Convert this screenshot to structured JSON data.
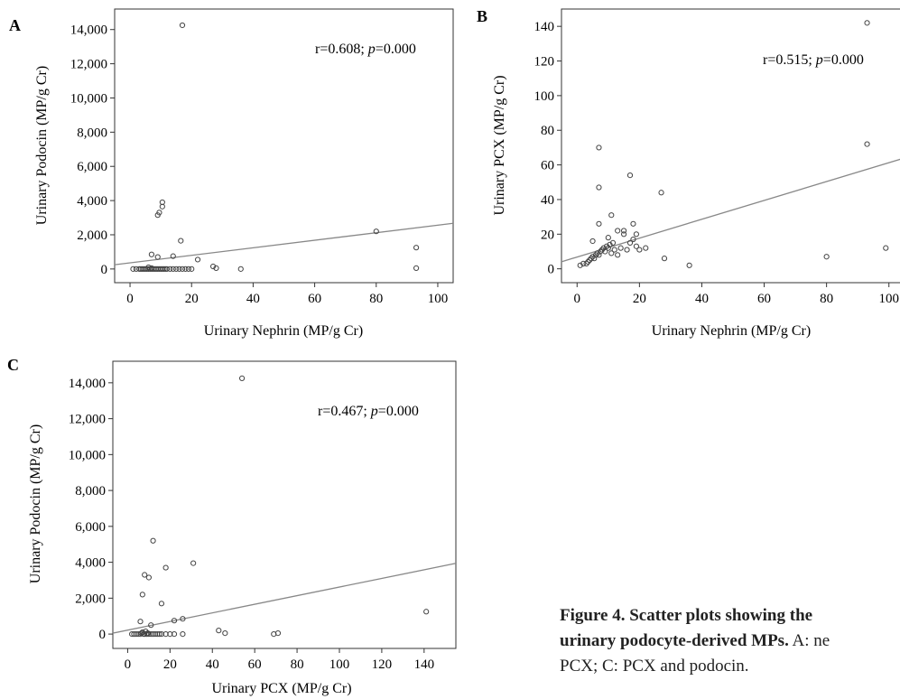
{
  "figure": {
    "caption_bold_line1": "Figure 4. Scatter plots showing the",
    "caption_bold_line2": "urinary podocyte-derived MPs.",
    "caption_rest_line2": " A: ne",
    "caption_line3": "PCX; C: PCX and podocin."
  },
  "chart_data": [
    {
      "panel": "A",
      "type": "scatter",
      "xlabel": "Urinary Nephrin (MP/g Cr)",
      "ylabel": "Urinary Podocin (MP/g Cr)",
      "annotation_r": "r=0.608; ",
      "annotation_p": "p",
      "annotation_val": "=0.000",
      "xlim": [
        -5,
        105
      ],
      "ylim": [
        -800,
        15200
      ],
      "xticks": [
        0,
        20,
        40,
        60,
        80,
        100
      ],
      "xtick_labels": [
        "0",
        "20",
        "40",
        "60",
        "80",
        "100"
      ],
      "yticks": [
        0,
        2000,
        4000,
        6000,
        8000,
        10000,
        12000,
        14000
      ],
      "ytick_labels": [
        "0",
        "2,000",
        "4,000",
        "6,000",
        "8,000",
        "10,000",
        "12,000",
        "14,000"
      ],
      "fit_line": {
        "intercept": 360,
        "slope": 22
      },
      "points": [
        [
          1,
          0
        ],
        [
          2,
          0
        ],
        [
          3,
          0
        ],
        [
          3.5,
          0
        ],
        [
          4,
          0
        ],
        [
          4.5,
          0
        ],
        [
          5,
          0
        ],
        [
          5.5,
          0
        ],
        [
          6,
          0
        ],
        [
          6,
          100
        ],
        [
          6.5,
          0
        ],
        [
          7,
          0
        ],
        [
          7,
          50
        ],
        [
          7.5,
          0
        ],
        [
          8,
          0
        ],
        [
          8.5,
          0
        ],
        [
          9,
          0
        ],
        [
          9.5,
          0
        ],
        [
          10,
          0
        ],
        [
          10.5,
          0
        ],
        [
          11,
          0
        ],
        [
          11.5,
          0
        ],
        [
          12,
          0
        ],
        [
          13,
          0
        ],
        [
          14,
          0
        ],
        [
          15,
          0
        ],
        [
          16,
          0
        ],
        [
          17,
          0
        ],
        [
          18,
          0
        ],
        [
          19,
          0
        ],
        [
          20,
          0
        ],
        [
          7,
          850
        ],
        [
          9,
          700
        ],
        [
          14,
          750
        ],
        [
          9,
          3150
        ],
        [
          9.5,
          3300
        ],
        [
          10.5,
          3650
        ],
        [
          10.5,
          3900
        ],
        [
          16.5,
          1650
        ],
        [
          22,
          550
        ],
        [
          27,
          150
        ],
        [
          28,
          50
        ],
        [
          36,
          0
        ],
        [
          17,
          14250
        ],
        [
          80,
          2200
        ],
        [
          93,
          1250
        ],
        [
          93,
          50
        ]
      ]
    },
    {
      "panel": "B",
      "type": "scatter",
      "xlabel": "Urinary Nephrin (MP/g Cr)",
      "ylabel": "Urinary PCX (MP/g Cr)",
      "annotation_r": "r=0.515; ",
      "annotation_p": "p",
      "annotation_val": "=0.000",
      "xlim": [
        -5,
        105
      ],
      "ylim": [
        -8,
        150
      ],
      "xticks": [
        0,
        20,
        40,
        60,
        80,
        100
      ],
      "xtick_labels": [
        "0",
        "20",
        "40",
        "60",
        "80",
        "100"
      ],
      "yticks": [
        0,
        20,
        40,
        60,
        80,
        100,
        120,
        140
      ],
      "ytick_labels": [
        "0",
        "20",
        "40",
        "60",
        "80",
        "100",
        "120",
        "140"
      ],
      "fit_line": {
        "intercept": 6.8,
        "slope": 0.545
      },
      "points": [
        [
          1,
          2
        ],
        [
          2,
          3
        ],
        [
          3,
          3
        ],
        [
          3.5,
          4
        ],
        [
          4,
          5
        ],
        [
          4.5,
          6
        ],
        [
          5,
          7
        ],
        [
          5.5,
          6
        ],
        [
          6,
          8
        ],
        [
          6.5,
          9
        ],
        [
          7,
          8
        ],
        [
          7.5,
          10
        ],
        [
          8,
          11
        ],
        [
          8.5,
          12
        ],
        [
          9,
          10
        ],
        [
          9.5,
          13
        ],
        [
          10,
          12
        ],
        [
          10.5,
          14
        ],
        [
          11,
          9
        ],
        [
          11.5,
          15
        ],
        [
          12,
          11
        ],
        [
          13,
          8
        ],
        [
          14,
          12
        ],
        [
          15,
          20
        ],
        [
          16,
          11
        ],
        [
          17,
          15
        ],
        [
          18,
          17
        ],
        [
          19,
          13
        ],
        [
          20,
          11
        ],
        [
          22,
          12
        ],
        [
          5,
          16
        ],
        [
          7,
          26
        ],
        [
          10,
          18
        ],
        [
          11,
          31
        ],
        [
          13,
          22
        ],
        [
          15,
          22
        ],
        [
          18,
          26
        ],
        [
          19,
          20
        ],
        [
          7,
          70
        ],
        [
          7,
          47
        ],
        [
          17,
          54
        ],
        [
          27,
          44
        ],
        [
          28,
          6
        ],
        [
          36,
          2
        ],
        [
          80,
          7
        ],
        [
          93,
          72
        ],
        [
          93,
          142
        ],
        [
          99,
          12
        ]
      ]
    },
    {
      "panel": "C",
      "type": "scatter",
      "xlabel": "Urinary PCX (MP/g Cr)",
      "ylabel": "Urinary Podocin (MP/g Cr)",
      "annotation_r": "r=0.467; ",
      "annotation_p": "p",
      "annotation_val": "=0.000",
      "xlim": [
        -7,
        155
      ],
      "ylim": [
        -800,
        15200
      ],
      "xticks": [
        0,
        20,
        40,
        60,
        80,
        100,
        120,
        140
      ],
      "xtick_labels": [
        "0",
        "20",
        "40",
        "60",
        "80",
        "100",
        "120",
        "140"
      ],
      "yticks": [
        0,
        2000,
        4000,
        6000,
        8000,
        10000,
        12000,
        14000
      ],
      "ytick_labels": [
        "0",
        "2,000",
        "4,000",
        "6,000",
        "8,000",
        "10,000",
        "12,000",
        "14,000"
      ],
      "fit_line": {
        "intercept": 220,
        "slope": 24
      },
      "points": [
        [
          2,
          0
        ],
        [
          3,
          0
        ],
        [
          4,
          0
        ],
        [
          5,
          0
        ],
        [
          6,
          0
        ],
        [
          6.5,
          50
        ],
        [
          7,
          100
        ],
        [
          7.5,
          0
        ],
        [
          8,
          0
        ],
        [
          8.5,
          150
        ],
        [
          9,
          0
        ],
        [
          9.5,
          50
        ],
        [
          10,
          0
        ],
        [
          11,
          0
        ],
        [
          12,
          0
        ],
        [
          13,
          0
        ],
        [
          14,
          0
        ],
        [
          15,
          0
        ],
        [
          16,
          0
        ],
        [
          18,
          0
        ],
        [
          20,
          0
        ],
        [
          22,
          0
        ],
        [
          26,
          0
        ],
        [
          6,
          700
        ],
        [
          11,
          500
        ],
        [
          22,
          750
        ],
        [
          26,
          850
        ],
        [
          7,
          2200
        ],
        [
          8,
          3300
        ],
        [
          10,
          3150
        ],
        [
          12,
          5200
        ],
        [
          16,
          1700
        ],
        [
          18,
          3700
        ],
        [
          31,
          3950
        ],
        [
          43,
          200
        ],
        [
          46,
          50
        ],
        [
          54,
          14250
        ],
        [
          69,
          0
        ],
        [
          71,
          50
        ],
        [
          141,
          1250
        ]
      ]
    }
  ]
}
